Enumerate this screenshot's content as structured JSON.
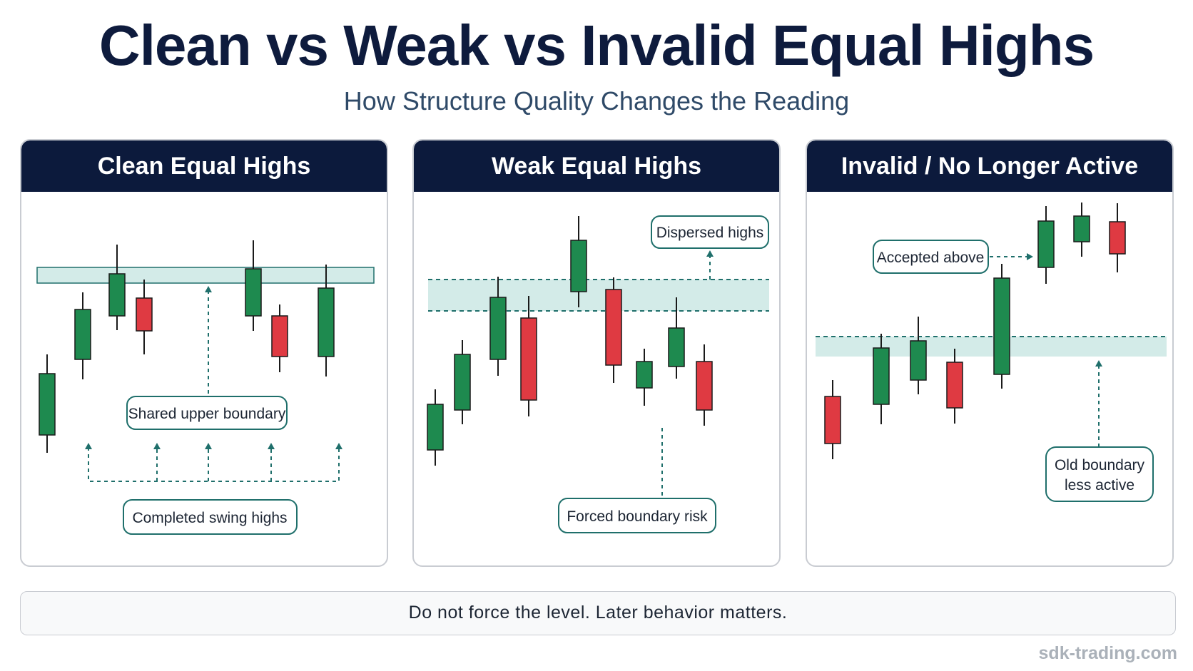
{
  "title": "Clean vs Weak vs Invalid Equal Highs",
  "subtitle": "How Structure Quality Changes the Reading",
  "panels": [
    {
      "heading": "Clean Equal Highs",
      "labels": [
        "Shared upper boundary",
        "Completed swing highs"
      ]
    },
    {
      "heading": "Weak Equal Highs",
      "labels": [
        "Dispersed highs",
        "Forced boundary risk"
      ]
    },
    {
      "heading": "Invalid / No Longer Active",
      "labels": [
        "Accepted above",
        "Old boundary",
        "less active"
      ]
    }
  ],
  "footer": "Do not force the level. Later behavior matters.",
  "watermark": "sdk-trading.com",
  "colors": {
    "navy": "#0c1a3c",
    "bull": "#1e8a4f",
    "bear": "#df3a42",
    "teal": "#1f6f6b",
    "zone": "#d3ebe8"
  }
}
